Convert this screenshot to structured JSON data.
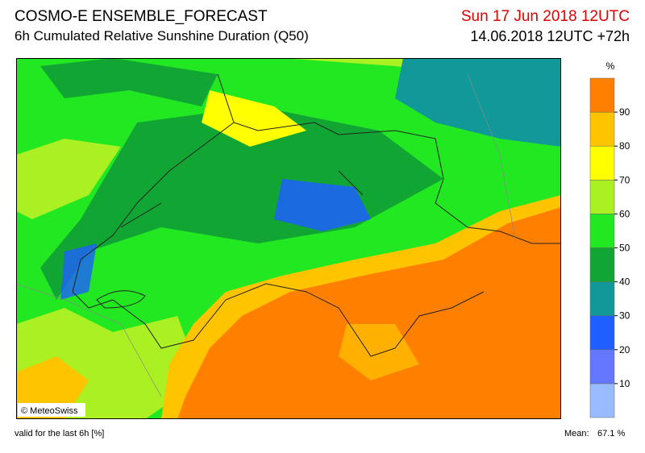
{
  "header": {
    "title": "COSMO-E ENSEMBLE_FORECAST",
    "subtitle": "6h Cumulated Relative Sunshine Duration (Q50)",
    "valid_date": "Sun 17 Jun 2018 12UTC",
    "run": "14.06.2018 12UTC +72h"
  },
  "legend": {
    "unit": "%",
    "ticks": [
      10,
      20,
      30,
      40,
      50,
      60,
      70,
      80,
      90
    ],
    "colors": [
      "#99bbff",
      "#6677ff",
      "#1f5fff",
      "#119999",
      "#11a633",
      "#22e822",
      "#aaf022",
      "#ffff00",
      "#ffc400",
      "#ff8000"
    ]
  },
  "map": {
    "credit": "© MeteoSwiss"
  },
  "footer": {
    "note": "valid for the last 6h [%]",
    "mean_label": "Mean:",
    "mean_value": "67.1 %"
  }
}
